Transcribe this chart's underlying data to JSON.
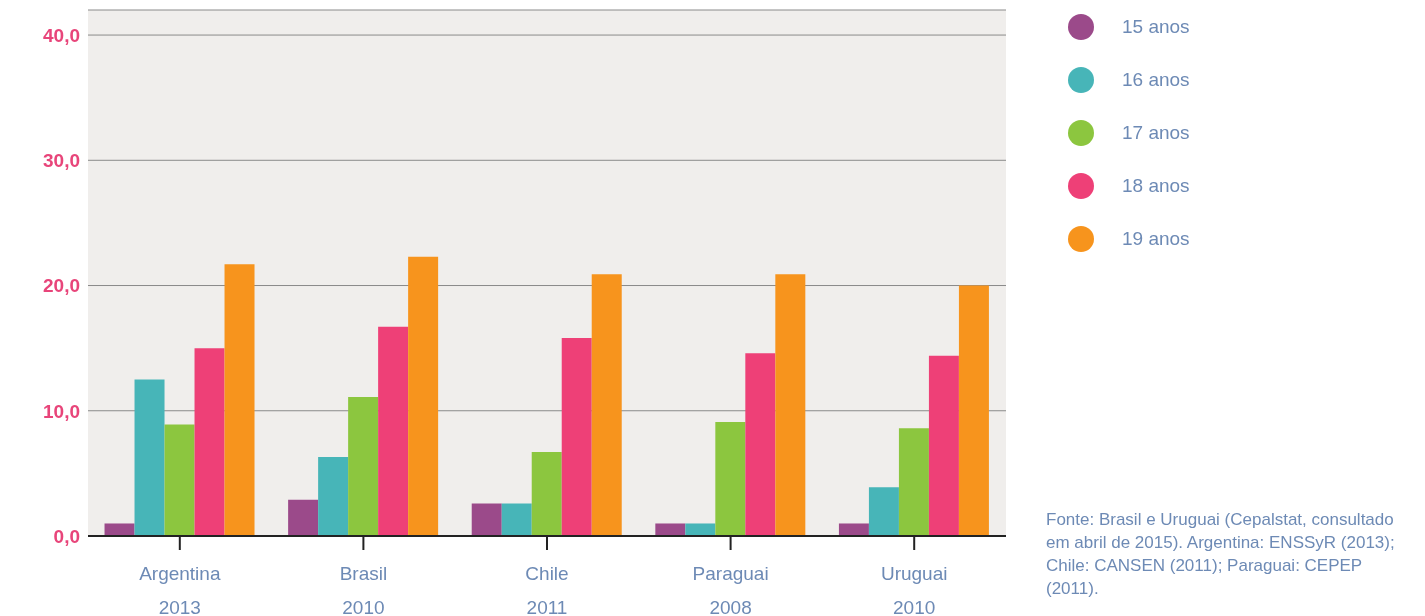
{
  "chart_data": {
    "type": "bar",
    "categories": [
      "Argentina\n2013",
      "Brasil\n2010",
      "Chile\n2011",
      "Paraguai\n2008",
      "Uruguai\n2010"
    ],
    "series": [
      {
        "name": "15 anos",
        "color": "#9b4a8a",
        "values": [
          1.0,
          2.9,
          2.6,
          1.0,
          1.0
        ]
      },
      {
        "name": "16 anos",
        "color": "#47b5b8",
        "values": [
          12.5,
          6.3,
          2.6,
          1.0,
          3.9
        ]
      },
      {
        "name": "17 anos",
        "color": "#8cc63f",
        "values": [
          8.9,
          11.1,
          6.7,
          9.1,
          8.6
        ]
      },
      {
        "name": "18 anos",
        "color": "#ee4077",
        "values": [
          15.0,
          16.7,
          15.8,
          14.6,
          14.4
        ]
      },
      {
        "name": "19 anos",
        "color": "#f7941d",
        "values": [
          21.7,
          22.3,
          20.9,
          20.9,
          20.0
        ]
      }
    ],
    "ylim": [
      0,
      42
    ],
    "yticks": [
      {
        "value": 0,
        "label": "0,0"
      },
      {
        "value": 10,
        "label": "10,0"
      },
      {
        "value": 20,
        "label": "20,0"
      },
      {
        "value": 30,
        "label": "30,0"
      },
      {
        "value": 40,
        "label": "40,0"
      }
    ],
    "grid": "y",
    "legend": "right",
    "annotations": [
      "Fonte: Brasil e Uruguai (Cepalstat, consultado em abril de 2015). Argentina: ENSSyR (2013); Chile: CANSEN (2011); Paraguai: CEPEP (2011)."
    ]
  }
}
